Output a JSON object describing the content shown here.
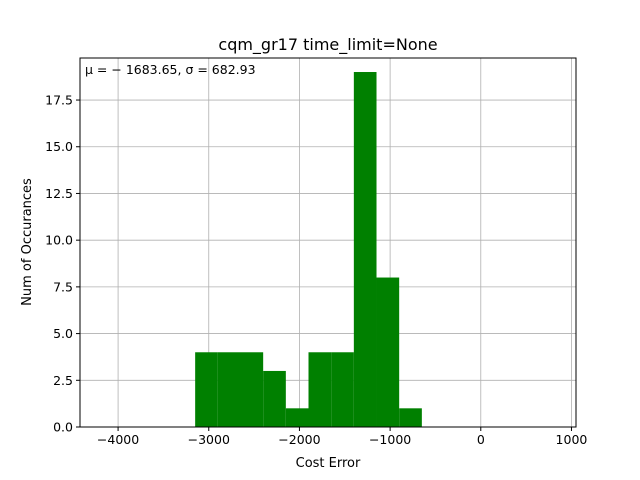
{
  "chart_data": {
    "type": "bar",
    "title": "cqm_gr17 time_limit=None",
    "xlabel": "Cost Error",
    "ylabel": "Num of Occurances",
    "annotation": "μ = − 1683.65,  σ = 682.93",
    "xlim": [
      -4420,
      1050
    ],
    "ylim": [
      0,
      19.75
    ],
    "grid": true,
    "bar_color": "#008000",
    "x_ticks": [
      -4000,
      -3000,
      -2000,
      -1000,
      0,
      1000
    ],
    "x_tick_labels": [
      "−4000",
      "−3000",
      "−2000",
      "−1000",
      "0",
      "1000"
    ],
    "y_ticks": [
      0.0,
      2.5,
      5.0,
      7.5,
      10.0,
      12.5,
      15.0,
      17.5
    ],
    "y_tick_labels": [
      "0.0",
      "2.5",
      "5.0",
      "7.5",
      "10.0",
      "12.5",
      "15.0",
      "17.5"
    ],
    "bins": [
      {
        "x0": -3150,
        "x1": -2900,
        "count": 4
      },
      {
        "x0": -2900,
        "x1": -2650,
        "count": 4
      },
      {
        "x0": -2650,
        "x1": -2400,
        "count": 4
      },
      {
        "x0": -2400,
        "x1": -2150,
        "count": 3
      },
      {
        "x0": -2150,
        "x1": -1900,
        "count": 1
      },
      {
        "x0": -1900,
        "x1": -1650,
        "count": 4
      },
      {
        "x0": -1650,
        "x1": -1400,
        "count": 4
      },
      {
        "x0": -1400,
        "x1": -1150,
        "count": 19
      },
      {
        "x0": -1150,
        "x1": -900,
        "count": 8
      },
      {
        "x0": -900,
        "x1": -650,
        "count": 1
      }
    ]
  }
}
